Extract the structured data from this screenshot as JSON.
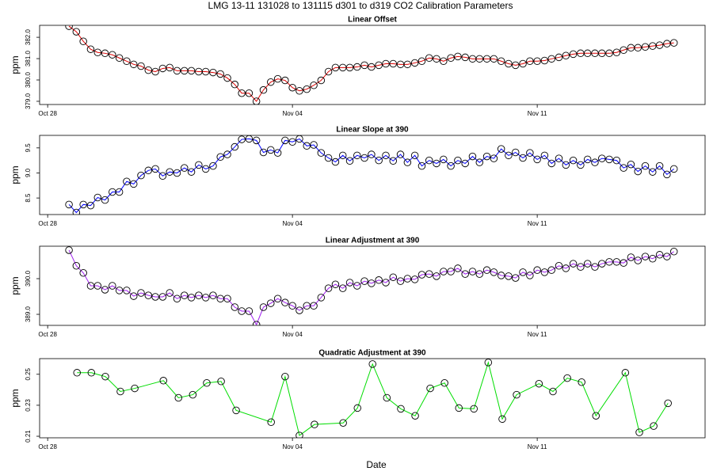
{
  "title": "LMG   13-11    131028 to 131115    d301 to d319   CO2 Calibration Parameters",
  "chart_data": [
    {
      "type": "line",
      "title": "Linear Offset",
      "y_label": "ppm",
      "color": "#dd0000",
      "marker_color": "#000000",
      "xlim": [
        300.77,
        319.8
      ],
      "xticks": [
        {
          "value": 301,
          "label": "Oct 28"
        },
        {
          "value": 308,
          "label": "Nov 04"
        },
        {
          "value": 315,
          "label": "Nov 11"
        }
      ],
      "ylim": [
        378.85,
        382.56
      ],
      "yticks": [
        {
          "value": 379,
          "label": "379.0"
        },
        {
          "value": 380,
          "label": "380.0"
        },
        {
          "value": 381,
          "label": "381.0"
        },
        {
          "value": 382,
          "label": "382.0"
        }
      ],
      "x": [
        301.61,
        301.82,
        302.02,
        302.23,
        302.43,
        302.64,
        302.85,
        303.05,
        303.26,
        303.46,
        303.67,
        303.88,
        304.08,
        304.29,
        304.49,
        304.7,
        304.91,
        305.11,
        305.32,
        305.52,
        305.73,
        305.94,
        306.14,
        306.35,
        306.55,
        306.76,
        306.97,
        307.17,
        307.38,
        307.58,
        307.79,
        308.0,
        308.2,
        308.41,
        308.61,
        308.82,
        309.03,
        309.23,
        309.44,
        309.64,
        309.85,
        310.06,
        310.26,
        310.47,
        310.67,
        310.88,
        311.09,
        311.29,
        311.5,
        311.7,
        311.91,
        312.12,
        312.32,
        312.53,
        312.73,
        312.94,
        313.15,
        313.35,
        313.56,
        313.76,
        313.97,
        314.18,
        314.38,
        314.59,
        314.79,
        315.0,
        315.21,
        315.41,
        315.62,
        315.82,
        316.03,
        316.24,
        316.44,
        316.65,
        316.85,
        317.06,
        317.27,
        317.47,
        317.68,
        317.88,
        318.09,
        318.3,
        318.5,
        318.71,
        318.91
      ],
      "values": [
        382.52,
        382.26,
        381.81,
        381.44,
        381.29,
        381.25,
        381.18,
        381.03,
        380.88,
        380.73,
        380.65,
        380.46,
        380.39,
        380.54,
        380.58,
        380.43,
        380.43,
        380.43,
        380.39,
        380.39,
        380.35,
        380.28,
        380.09,
        379.79,
        379.38,
        379.38,
        379.0,
        379.53,
        379.9,
        380.05,
        379.98,
        379.64,
        379.49,
        379.57,
        379.75,
        379.98,
        380.39,
        380.58,
        380.58,
        380.58,
        380.61,
        380.69,
        380.61,
        380.69,
        380.76,
        380.76,
        380.73,
        380.73,
        380.8,
        380.88,
        381.03,
        380.99,
        380.88,
        381.03,
        381.1,
        381.06,
        380.99,
        380.99,
        380.99,
        380.99,
        380.88,
        380.76,
        380.69,
        380.76,
        380.88,
        380.88,
        380.91,
        380.99,
        381.06,
        381.14,
        381.21,
        381.25,
        381.25,
        381.25,
        381.25,
        381.25,
        381.29,
        381.4,
        381.51,
        381.51,
        381.55,
        381.59,
        381.63,
        381.7,
        381.74
      ]
    },
    {
      "type": "line",
      "title": "Linear Slope at 390",
      "y_label": "ppm",
      "color": "#0000ff",
      "marker_color": "#000000",
      "xlim": [
        300.77,
        319.8
      ],
      "xticks": [
        {
          "value": 301,
          "label": "Oct 28"
        },
        {
          "value": 308,
          "label": "Nov 04"
        },
        {
          "value": 315,
          "label": "Nov 11"
        }
      ],
      "ylim": [
        8.17,
        9.75
      ],
      "yticks": [
        8.5,
        {
          "value": 9,
          "label": "9.0"
        },
        9.5
      ],
      "x": [
        301.61,
        301.82,
        302.02,
        302.23,
        302.43,
        302.64,
        302.85,
        303.05,
        303.26,
        303.46,
        303.67,
        303.88,
        304.08,
        304.29,
        304.49,
        304.7,
        304.91,
        305.11,
        305.32,
        305.52,
        305.73,
        305.94,
        306.14,
        306.35,
        306.55,
        306.76,
        306.97,
        307.17,
        307.38,
        307.58,
        307.79,
        308.0,
        308.2,
        308.41,
        308.61,
        308.82,
        309.03,
        309.23,
        309.44,
        309.64,
        309.85,
        310.06,
        310.26,
        310.47,
        310.67,
        310.88,
        311.09,
        311.29,
        311.5,
        311.7,
        311.91,
        312.12,
        312.32,
        312.53,
        312.73,
        312.94,
        313.15,
        313.35,
        313.56,
        313.76,
        313.97,
        314.18,
        314.38,
        314.59,
        314.79,
        315.0,
        315.21,
        315.41,
        315.62,
        315.82,
        316.03,
        316.24,
        316.44,
        316.65,
        316.85,
        317.06,
        317.27,
        317.47,
        317.68,
        317.88,
        318.09,
        318.3,
        318.5,
        318.71,
        318.91
      ],
      "values": [
        8.37,
        8.21,
        8.37,
        8.35,
        8.51,
        8.46,
        8.62,
        8.62,
        8.83,
        8.78,
        8.95,
        9.05,
        9.08,
        8.94,
        9.02,
        9.0,
        9.1,
        9.02,
        9.16,
        9.08,
        9.14,
        9.32,
        9.37,
        9.52,
        9.67,
        9.68,
        9.65,
        9.41,
        9.46,
        9.4,
        9.65,
        9.62,
        9.68,
        9.54,
        9.56,
        9.4,
        9.3,
        9.22,
        9.35,
        9.24,
        9.35,
        9.3,
        9.37,
        9.25,
        9.35,
        9.24,
        9.37,
        9.21,
        9.35,
        9.14,
        9.25,
        9.19,
        9.27,
        9.14,
        9.25,
        9.19,
        9.33,
        9.21,
        9.33,
        9.29,
        9.48,
        9.35,
        9.41,
        9.3,
        9.4,
        9.27,
        9.35,
        9.19,
        9.29,
        9.16,
        9.25,
        9.16,
        9.27,
        9.21,
        9.29,
        9.27,
        9.25,
        9.1,
        9.17,
        9.03,
        9.14,
        9.02,
        9.14,
        8.97,
        9.08
      ]
    },
    {
      "type": "line",
      "title": "Linear Adjustment at 390",
      "y_label": "ppm",
      "color": "#a020f0",
      "marker_color": "#000000",
      "xlim": [
        300.77,
        319.8
      ],
      "xticks": [
        {
          "value": 301,
          "label": "Oct 28"
        },
        {
          "value": 308,
          "label": "Nov 04"
        },
        {
          "value": 315,
          "label": "Nov 11"
        }
      ],
      "ylim": [
        388.69,
        390.91
      ],
      "yticks": [
        {
          "value": 389,
          "label": "389.0"
        },
        {
          "value": 390,
          "label": "390.0"
        }
      ],
      "x": [
        301.61,
        301.82,
        302.02,
        302.23,
        302.43,
        302.64,
        302.85,
        303.05,
        303.26,
        303.46,
        303.67,
        303.88,
        304.08,
        304.29,
        304.49,
        304.7,
        304.91,
        305.11,
        305.32,
        305.52,
        305.73,
        305.94,
        306.14,
        306.35,
        306.55,
        306.76,
        306.97,
        307.17,
        307.38,
        307.58,
        307.79,
        308.0,
        308.2,
        308.41,
        308.61,
        308.82,
        309.03,
        309.23,
        309.44,
        309.64,
        309.85,
        310.06,
        310.26,
        310.47,
        310.67,
        310.88,
        311.09,
        311.29,
        311.5,
        311.7,
        311.91,
        312.12,
        312.32,
        312.53,
        312.73,
        312.94,
        313.15,
        313.35,
        313.56,
        313.76,
        313.97,
        314.18,
        314.38,
        314.59,
        314.79,
        315.0,
        315.21,
        315.41,
        315.62,
        315.82,
        316.03,
        316.24,
        316.44,
        316.65,
        316.85,
        317.06,
        317.27,
        317.47,
        317.68,
        317.88,
        318.09,
        318.3,
        318.5,
        318.71,
        318.91
      ],
      "values": [
        390.8,
        390.36,
        390.16,
        389.8,
        389.8,
        389.69,
        389.8,
        389.67,
        389.67,
        389.51,
        389.6,
        389.53,
        389.49,
        389.49,
        389.6,
        389.44,
        389.53,
        389.47,
        389.53,
        389.47,
        389.53,
        389.44,
        389.44,
        389.2,
        389.09,
        389.09,
        388.71,
        389.2,
        389.31,
        389.44,
        389.33,
        389.24,
        389.11,
        389.24,
        389.24,
        389.47,
        389.73,
        389.84,
        389.73,
        389.89,
        389.8,
        389.93,
        389.87,
        389.96,
        389.89,
        390.04,
        389.93,
        390.0,
        389.98,
        390.11,
        390.13,
        390.07,
        390.2,
        390.2,
        390.29,
        390.13,
        390.2,
        390.13,
        390.24,
        390.18,
        390.09,
        390.07,
        390.02,
        390.18,
        390.09,
        390.24,
        390.18,
        390.24,
        390.36,
        390.29,
        390.42,
        390.33,
        390.42,
        390.33,
        390.42,
        390.47,
        390.47,
        390.44,
        390.6,
        390.51,
        390.62,
        390.56,
        390.67,
        390.62,
        390.76
      ]
    },
    {
      "type": "line",
      "title": "Quadratic Adjustment at 390",
      "y_label": "ppm",
      "x_label": "Date",
      "color": "#00dd00",
      "marker_color": "#000000",
      "xlim": [
        300.77,
        319.8
      ],
      "xticks": [
        {
          "value": 301,
          "label": "Oct 28"
        },
        {
          "value": 308,
          "label": "Nov 04"
        },
        {
          "value": 315,
          "label": "Nov 11"
        }
      ],
      "ylim": [
        0.209,
        0.2601
      ],
      "yticks": [
        0.21,
        0.23,
        0.25
      ],
      "x": [
        301.84,
        302.25,
        302.65,
        303.08,
        303.49,
        304.31,
        304.74,
        305.15,
        305.55,
        305.96,
        306.39,
        307.39,
        307.79,
        308.2,
        308.63,
        309.45,
        309.86,
        310.29,
        310.7,
        311.1,
        311.51,
        311.94,
        312.35,
        312.76,
        313.19,
        313.6,
        314.0,
        314.41,
        315.05,
        315.45,
        315.86,
        316.27,
        316.68,
        317.52,
        317.92,
        318.33,
        318.74
      ],
      "values": [
        0.251,
        0.251,
        0.2485,
        0.2389,
        0.2409,
        0.2459,
        0.2348,
        0.2368,
        0.2444,
        0.2454,
        0.2267,
        0.2191,
        0.2485,
        0.2105,
        0.2176,
        0.2186,
        0.2282,
        0.2566,
        0.2348,
        0.2277,
        0.2232,
        0.2409,
        0.2444,
        0.2282,
        0.2277,
        0.2576,
        0.2211,
        0.2368,
        0.2439,
        0.2389,
        0.2475,
        0.2449,
        0.2232,
        0.251,
        0.2125,
        0.2166,
        0.2313
      ]
    }
  ]
}
